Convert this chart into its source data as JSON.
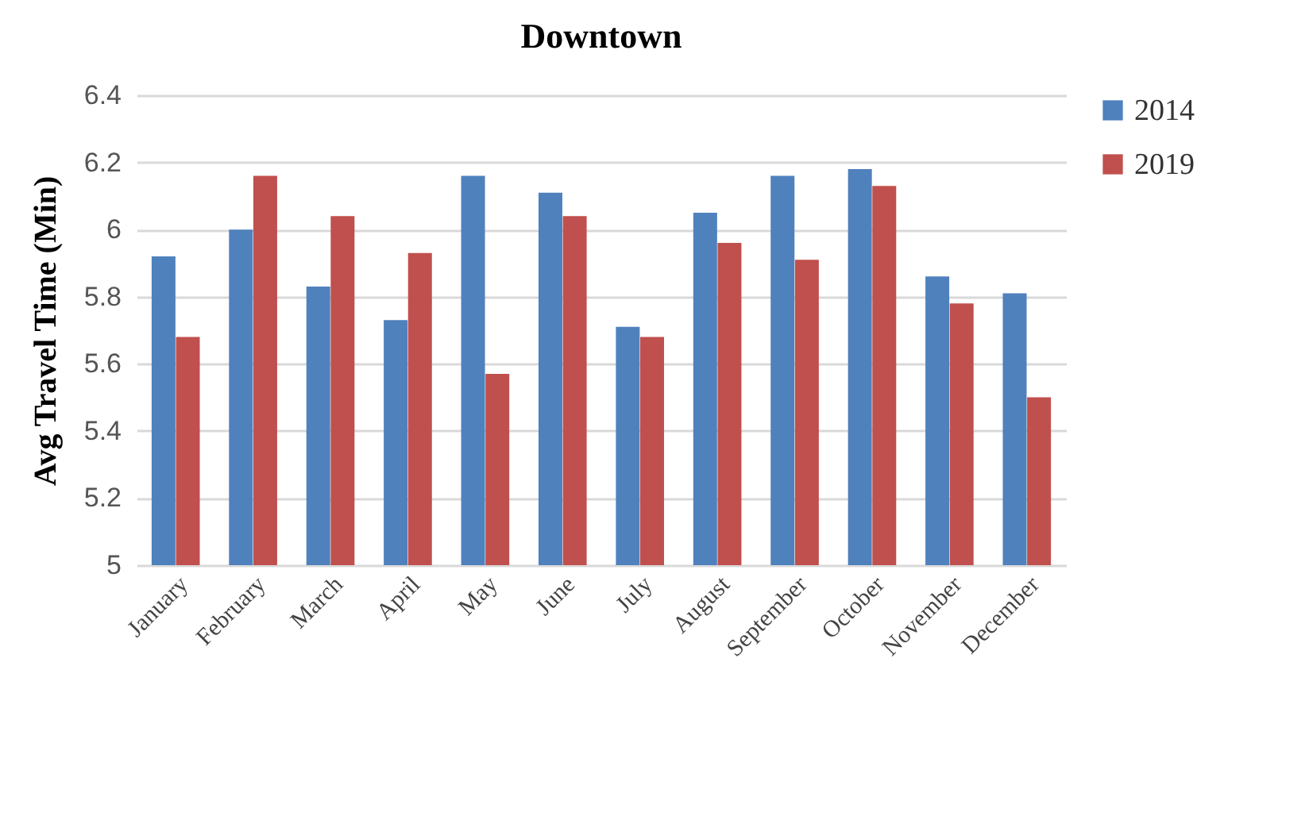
{
  "chart_data": {
    "type": "bar",
    "title": "Downtown",
    "ylabel": "Avg Travel Time (Min)",
    "categories": [
      "January",
      "February",
      "March",
      "April",
      "May",
      "June",
      "July",
      "August",
      "September",
      "October",
      "November",
      "December"
    ],
    "series": [
      {
        "name": "2014",
        "color": "#4f81bd",
        "values": [
          5.92,
          6.0,
          5.83,
          5.73,
          6.16,
          6.11,
          5.71,
          6.05,
          6.16,
          6.18,
          5.86,
          5.81
        ]
      },
      {
        "name": "2019",
        "color": "#c0504d",
        "values": [
          5.68,
          6.16,
          6.04,
          5.93,
          5.57,
          6.04,
          5.68,
          5.96,
          5.91,
          6.13,
          5.78,
          5.5
        ]
      }
    ],
    "ylim": [
      5,
      6.4
    ],
    "yticks": [
      5,
      5.2,
      5.4,
      5.6,
      5.8,
      6,
      6.2,
      6.4
    ],
    "grid": "y",
    "legend": "right"
  }
}
